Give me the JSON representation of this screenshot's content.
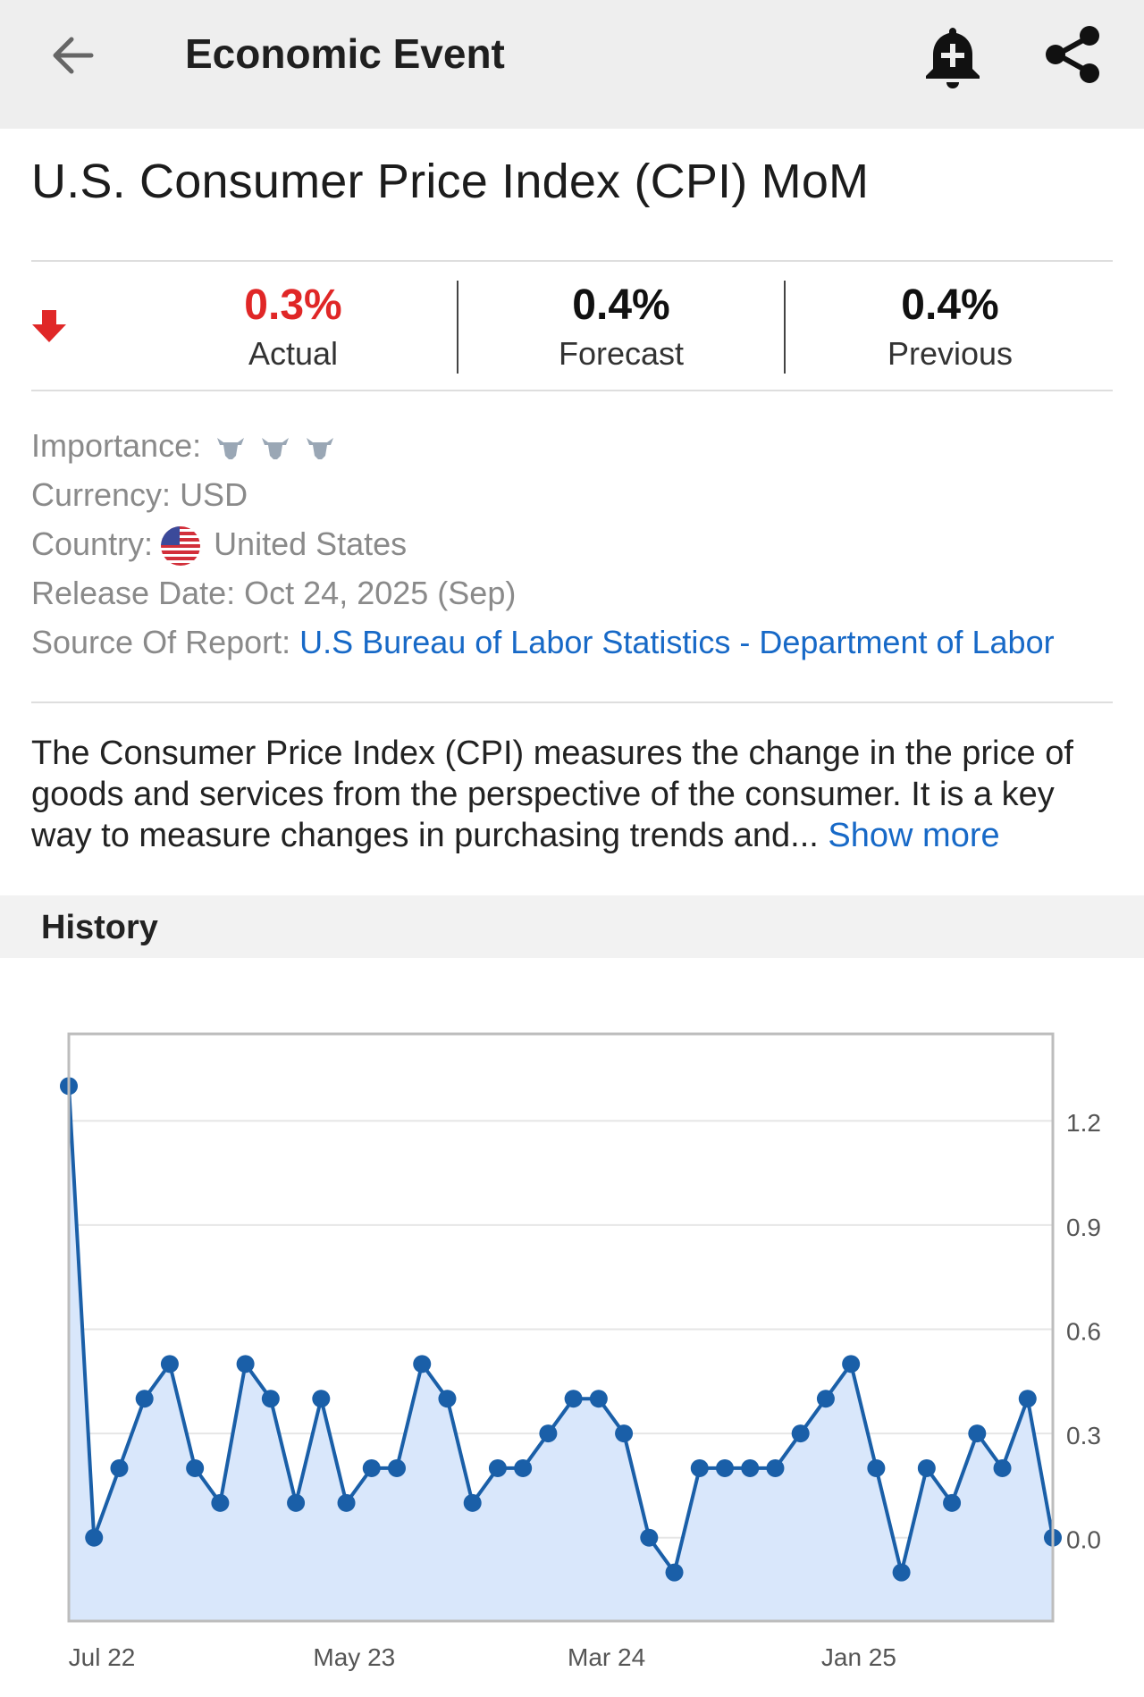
{
  "header": {
    "title": "Economic Event",
    "back_icon": "arrow-left-icon",
    "alert_icon": "bell-plus-icon",
    "share_icon": "share-icon"
  },
  "event": {
    "title": "U.S. Consumer Price Index (CPI) MoM"
  },
  "stats": {
    "trend_icon": "arrow-down-icon",
    "actual_value": "0.3%",
    "actual_label": "Actual",
    "forecast_value": "0.4%",
    "forecast_label": "Forecast",
    "previous_value": "0.4%",
    "previous_label": "Previous"
  },
  "details": {
    "importance_label": "Importance:",
    "importance_level": 3,
    "currency_label": "Currency:",
    "currency_value": "USD",
    "country_label": "Country:",
    "country_value": "United States",
    "release_label": "Release Date:",
    "release_value": "Oct 24, 2025 (Sep)",
    "source_label": "Source Of Report:",
    "source_value": "U.S Bureau of Labor Statistics - Department of Labor"
  },
  "description": {
    "text": "The Consumer Price Index (CPI) measures the change in the price of goods and services from the perspective of the consumer. It is a key way to measure changes in purchasing trends and...",
    "show_more": "Show more"
  },
  "history": {
    "heading": "History"
  },
  "colors": {
    "negative": "#e02727",
    "link": "#1769c7",
    "line": "#1a5fa8",
    "area": "#d9e7fb"
  },
  "chart_data": {
    "type": "area",
    "x": [
      "Jul 22",
      "Aug 22",
      "Sep 22",
      "Oct 22",
      "Nov 22",
      "Dec 22",
      "Jan 23",
      "Feb 23",
      "Mar 23",
      "Apr 23",
      "May 23",
      "Jun 23",
      "Jul 23",
      "Aug 23",
      "Sep 23",
      "Oct 23",
      "Nov 23",
      "Dec 23",
      "Jan 24",
      "Feb 24",
      "Mar 24",
      "Apr 24",
      "May 24",
      "Jun 24",
      "Jul 24",
      "Aug 24",
      "Sep 24",
      "Oct 24",
      "Nov 24",
      "Dec 24",
      "Jan 25",
      "Feb 25",
      "Mar 25",
      "Apr 25",
      "May 25",
      "Jun 25",
      "Jul 25",
      "Aug 25",
      "Sep 25",
      "Oct 25"
    ],
    "values": [
      1.3,
      0.0,
      0.2,
      0.4,
      0.5,
      0.2,
      0.1,
      0.5,
      0.4,
      0.1,
      0.4,
      0.1,
      0.2,
      0.2,
      0.5,
      0.4,
      0.1,
      0.2,
      0.2,
      0.3,
      0.4,
      0.4,
      0.3,
      0.0,
      -0.1,
      0.2,
      0.2,
      0.2,
      0.2,
      0.3,
      0.4,
      0.5,
      0.2,
      -0.1,
      0.2,
      0.1,
      0.3,
      0.2,
      0.4,
      0.0
    ],
    "x_tick_labels": [
      "Jul 22",
      "May 23",
      "Mar 24",
      "Jan 25"
    ],
    "y_ticks": [
      0.0,
      0.3,
      0.6,
      0.9,
      1.2
    ],
    "y_tick_labels": [
      "0.0",
      "0.3",
      "0.6",
      "0.9",
      "1.2"
    ],
    "ylim": [
      -0.24,
      1.45
    ],
    "y_axis_side": "right",
    "grid": true
  }
}
